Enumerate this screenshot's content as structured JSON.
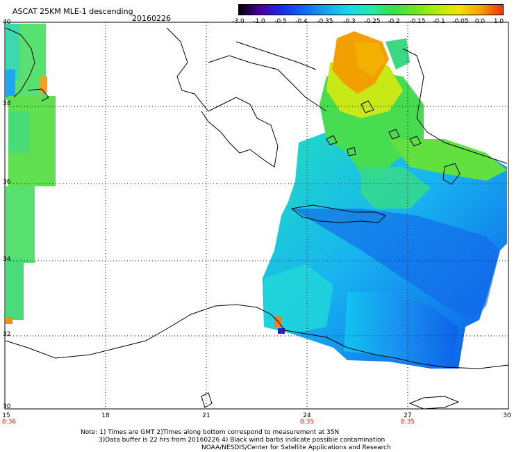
{
  "header": {
    "title": "ASCAT 25KM MLE-1 descending",
    "date": "20160226"
  },
  "colorbar": {
    "labels": [
      "-3.0",
      "-1.0",
      "-0.5",
      "-0.4",
      "-0.35",
      "-0.3",
      "-0.25",
      "-0.2",
      "-0.15",
      "-0.1",
      "-0.05",
      "0.0",
      "1.0"
    ],
    "colors": [
      "#000000",
      "#4a00a8",
      "#1a2ee8",
      "#0a6cf0",
      "#16a6ee",
      "#18d6e6",
      "#28e6a8",
      "#38e048",
      "#6ae624",
      "#b4ec0c",
      "#f0e400",
      "#f6a000",
      "#f03000"
    ]
  },
  "axes": {
    "lat_labels": [
      "40",
      "38",
      "36",
      "34",
      "32",
      "30"
    ],
    "lon_labels": [
      "15",
      "18",
      "21",
      "24",
      "27",
      "30"
    ],
    "time_labels": [
      "8:36",
      "8:35",
      "8:35"
    ]
  },
  "notes": {
    "line1": "Note: 1) Times are GMT 2)Times along bottom correspond to measurement at 35N",
    "line2": "3)Data buffer is 22 hrs from 20160226 4) Black wind barbs indicate possible contamination",
    "line3": "NOAA/NESDIS/Center for Satellite Applications and Research"
  }
}
